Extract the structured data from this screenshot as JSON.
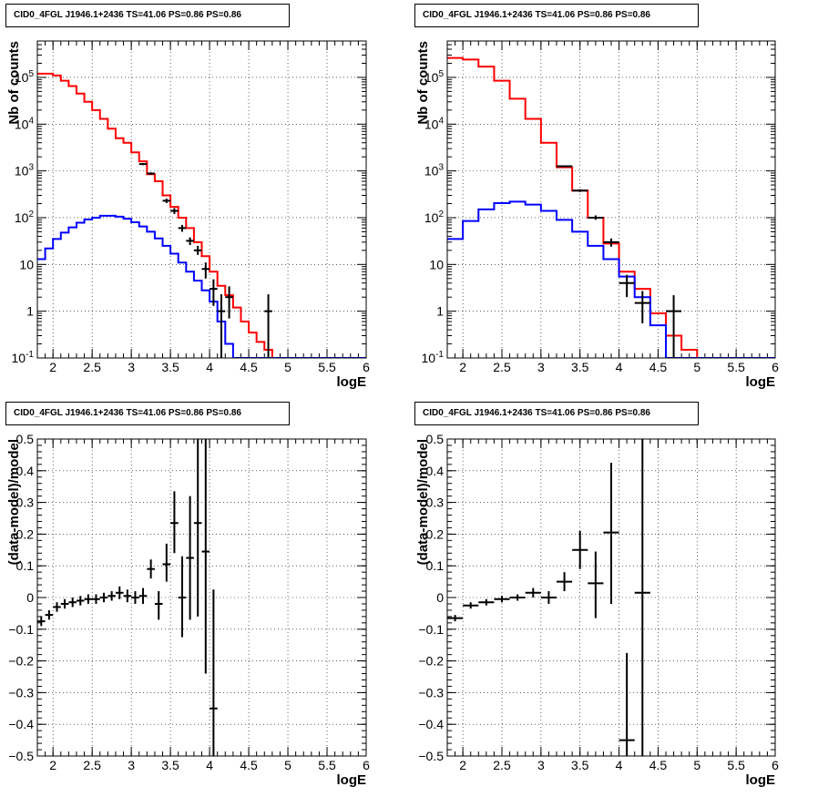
{
  "chart_data": [
    {
      "id": "p1",
      "type": "histogram",
      "title": "CID0_4FGL J1946.1+2436 TS=41.06 PS=0.86 PS=0.86",
      "xlabel": "logE",
      "ylabel": "Nb of counts",
      "xlim": [
        1.8,
        6.0
      ],
      "ylim": [
        0.1,
        600000
      ],
      "log_y": true,
      "grid": true,
      "x_ticks": [
        2,
        2.5,
        3,
        3.5,
        4,
        4.5,
        5,
        5.5,
        6
      ],
      "x_tick_labels": [
        "2",
        "2.5",
        "3",
        "3.5",
        "4",
        "4.5",
        "5",
        "5.5",
        "6"
      ],
      "y_ticks": [
        0.1,
        1,
        10,
        100,
        1000,
        10000,
        100000
      ],
      "y_tick_labels": [
        "10^-1",
        "1",
        "10",
        "10^2",
        "10^3",
        "10^4",
        "10^5"
      ],
      "series": [
        {
          "kind": "step",
          "color": "#ff0000",
          "bin_width": 0.1,
          "bin_starts": [
            1.8,
            1.9,
            2.0,
            2.1,
            2.2,
            2.3,
            2.4,
            2.5,
            2.6,
            2.7,
            2.8,
            2.9,
            3.0,
            3.1,
            3.2,
            3.3,
            3.4,
            3.5,
            3.6,
            3.7,
            3.8,
            3.9,
            4.0,
            4.1,
            4.2,
            4.3,
            4.4,
            4.5,
            4.6,
            4.7,
            4.8,
            4.9,
            5.0,
            5.1,
            5.2,
            5.3,
            5.4,
            5.5,
            5.6,
            5.7,
            5.8,
            5.9
          ],
          "values": [
            120000,
            120000,
            110000,
            85000,
            65000,
            45000,
            30000,
            20000,
            13000,
            8000,
            5000,
            4000,
            2500,
            1600,
            850,
            600,
            300,
            170,
            100,
            60,
            30,
            15,
            7,
            3.5,
            2.2,
            1.2,
            0.6,
            0.35,
            0.22,
            0.15,
            0.1,
            0.1,
            0.1,
            0.1,
            0.1,
            0.1,
            0.1,
            0.1,
            0.1,
            0.1,
            0.1,
            0.1
          ]
        },
        {
          "kind": "step",
          "color": "#0000ff",
          "bin_width": 0.1,
          "bin_starts": [
            1.8,
            1.9,
            2.0,
            2.1,
            2.2,
            2.3,
            2.4,
            2.5,
            2.6,
            2.7,
            2.8,
            2.9,
            3.0,
            3.1,
            3.2,
            3.3,
            3.4,
            3.5,
            3.6,
            3.7,
            3.8,
            3.9,
            4.0,
            4.1,
            4.2,
            4.3,
            4.4,
            4.5,
            4.6,
            4.7,
            4.8,
            4.9,
            5.0,
            5.1,
            5.2,
            5.3,
            5.4,
            5.5,
            5.6,
            5.7,
            5.8,
            5.9
          ],
          "values": [
            13,
            22,
            35,
            48,
            62,
            78,
            92,
            100,
            110,
            110,
            105,
            95,
            80,
            65,
            50,
            36,
            25,
            17,
            11,
            7,
            4.5,
            2.8,
            1.6,
            0.6,
            0.2,
            0.1,
            0.1,
            0.1,
            0.1,
            0.1,
            0.1,
            0.1,
            0.1,
            0.1,
            0.1,
            0.1,
            0.1,
            0.1,
            0.1,
            0.1,
            0.1,
            0.1
          ]
        },
        {
          "kind": "errorbars",
          "color": "#000000",
          "points": [
            {
              "x": 3.15,
              "y": 1400,
              "xerr": 0.05,
              "ylo": 1330,
              "yhi": 1470
            },
            {
              "x": 3.25,
              "y": 880,
              "xerr": 0.05,
              "ylo": 830,
              "yhi": 930
            },
            {
              "x": 3.45,
              "y": 230,
              "xerr": 0.05,
              "ylo": 205,
              "yhi": 255
            },
            {
              "x": 3.55,
              "y": 140,
              "xerr": 0.05,
              "ylo": 120,
              "yhi": 160
            },
            {
              "x": 3.65,
              "y": 60,
              "xerr": 0.05,
              "ylo": 50,
              "yhi": 70
            },
            {
              "x": 3.75,
              "y": 32,
              "xerr": 0.05,
              "ylo": 26,
              "yhi": 38
            },
            {
              "x": 3.85,
              "y": 20,
              "xerr": 0.05,
              "ylo": 16,
              "yhi": 25
            },
            {
              "x": 3.95,
              "y": 8,
              "xerr": 0.05,
              "ylo": 5,
              "yhi": 11
            },
            {
              "x": 4.05,
              "y": 3,
              "xerr": 0.05,
              "ylo": 1.3,
              "yhi": 4.8
            },
            {
              "x": 4.15,
              "y": 1,
              "xerr": 0.05,
              "ylo": 0.1,
              "yhi": 2.3
            },
            {
              "x": 4.25,
              "y": 2,
              "xerr": 0.05,
              "ylo": 0.7,
              "yhi": 3.4
            },
            {
              "x": 4.75,
              "y": 1,
              "xerr": 0.05,
              "ylo": 0.1,
              "yhi": 2.3
            }
          ]
        }
      ]
    },
    {
      "id": "p2",
      "type": "histogram",
      "title": "CID0_4FGL J1946.1+2436 TS=41.06 PS=0.86 PS=0.86",
      "xlabel": "logE",
      "ylabel": "Nb of counts",
      "xlim": [
        1.8,
        6.0
      ],
      "ylim": [
        0.1,
        600000
      ],
      "log_y": true,
      "grid": true,
      "x_ticks": [
        2,
        2.5,
        3,
        3.5,
        4,
        4.5,
        5,
        5.5,
        6
      ],
      "x_tick_labels": [
        "2",
        "2.5",
        "3",
        "3.5",
        "4",
        "4.5",
        "5",
        "5.5",
        "6"
      ],
      "y_ticks": [
        0.1,
        1,
        10,
        100,
        1000,
        10000,
        100000
      ],
      "y_tick_labels": [
        "10^-1",
        "1",
        "10",
        "10^2",
        "10^3",
        "10^4",
        "10^5"
      ],
      "series": [
        {
          "kind": "step",
          "color": "#ff0000",
          "bin_width": 0.2,
          "bin_starts": [
            1.8,
            2.0,
            2.2,
            2.4,
            2.6,
            2.8,
            3.0,
            3.2,
            3.4,
            3.6,
            3.8,
            4.0,
            4.2,
            4.4,
            4.6,
            4.8,
            5.0,
            5.2,
            5.4,
            5.6,
            5.8
          ],
          "values": [
            260000,
            240000,
            170000,
            85000,
            35000,
            13000,
            4000,
            1200,
            380,
            100,
            28,
            7,
            3,
            0.9,
            0.3,
            0.15,
            0.1,
            0.1,
            0.1,
            0.1,
            0.1
          ]
        },
        {
          "kind": "step",
          "color": "#0000ff",
          "bin_width": 0.2,
          "bin_starts": [
            1.8,
            2.0,
            2.2,
            2.4,
            2.6,
            2.8,
            3.0,
            3.2,
            3.4,
            3.6,
            3.8,
            4.0,
            4.2,
            4.4,
            4.6,
            4.8,
            5.0,
            5.2,
            5.4,
            5.6,
            5.8
          ],
          "values": [
            35,
            85,
            150,
            205,
            220,
            190,
            140,
            90,
            50,
            25,
            13,
            5.5,
            2,
            0.5,
            0.1,
            0.1,
            0.1,
            0.1,
            0.1,
            0.1,
            0.1
          ]
        },
        {
          "kind": "errorbars",
          "color": "#000000",
          "points": [
            {
              "x": 3.3,
              "y": 1260,
              "xerr": 0.1,
              "ylo": 1210,
              "yhi": 1310
            },
            {
              "x": 3.5,
              "y": 380,
              "xerr": 0.1,
              "ylo": 355,
              "yhi": 405
            },
            {
              "x": 3.7,
              "y": 100,
              "xerr": 0.1,
              "ylo": 90,
              "yhi": 112
            },
            {
              "x": 3.9,
              "y": 30,
              "xerr": 0.1,
              "ylo": 24,
              "yhi": 36
            },
            {
              "x": 4.1,
              "y": 4,
              "xerr": 0.1,
              "ylo": 2,
              "yhi": 6
            },
            {
              "x": 4.3,
              "y": 1.5,
              "xerr": 0.1,
              "ylo": 0.55,
              "yhi": 2.7
            },
            {
              "x": 4.7,
              "y": 1,
              "xerr": 0.1,
              "ylo": 0.1,
              "yhi": 2.2
            }
          ]
        }
      ]
    },
    {
      "id": "p3",
      "type": "scatter",
      "title": "CID0_4FGL J1946.1+2436 TS=41.06 PS=0.86 PS=0.86",
      "xlabel": "logE",
      "ylabel": "(data-model)/model",
      "xlim": [
        1.8,
        6.0
      ],
      "ylim": [
        -0.5,
        0.5
      ],
      "log_y": false,
      "grid": true,
      "x_ticks": [
        2,
        2.5,
        3,
        3.5,
        4,
        4.5,
        5,
        5.5,
        6
      ],
      "x_tick_labels": [
        "2",
        "2.5",
        "3",
        "3.5",
        "4",
        "4.5",
        "5",
        "5.5",
        "6"
      ],
      "y_ticks": [
        -0.5,
        -0.4,
        -0.3,
        -0.2,
        -0.1,
        0,
        0.1,
        0.2,
        0.3,
        0.4,
        0.5
      ],
      "y_tick_labels": [
        "−0.5",
        "−0.4",
        "−0.3",
        "−0.2",
        "−0.1",
        "0",
        "0.1",
        "0.2",
        "0.3",
        "0.4",
        "0.5"
      ],
      "series": [
        {
          "kind": "errorbars",
          "color": "#000000",
          "points": [
            {
              "x": 1.85,
              "y": -0.075,
              "xerr": 0.05,
              "ylo": -0.09,
              "yhi": -0.06
            },
            {
              "x": 1.95,
              "y": -0.055,
              "xerr": 0.05,
              "ylo": -0.07,
              "yhi": -0.04
            },
            {
              "x": 2.05,
              "y": -0.03,
              "xerr": 0.05,
              "ylo": -0.045,
              "yhi": -0.015
            },
            {
              "x": 2.15,
              "y": -0.02,
              "xerr": 0.05,
              "ylo": -0.035,
              "yhi": -0.005
            },
            {
              "x": 2.25,
              "y": -0.015,
              "xerr": 0.05,
              "ylo": -0.03,
              "yhi": 0.0
            },
            {
              "x": 2.35,
              "y": -0.01,
              "xerr": 0.05,
              "ylo": -0.025,
              "yhi": 0.005
            },
            {
              "x": 2.45,
              "y": -0.005,
              "xerr": 0.05,
              "ylo": -0.02,
              "yhi": 0.01
            },
            {
              "x": 2.55,
              "y": -0.005,
              "xerr": 0.05,
              "ylo": -0.02,
              "yhi": 0.01
            },
            {
              "x": 2.65,
              "y": 0.0,
              "xerr": 0.05,
              "ylo": -0.015,
              "yhi": 0.015
            },
            {
              "x": 2.75,
              "y": 0.005,
              "xerr": 0.05,
              "ylo": -0.01,
              "yhi": 0.02
            },
            {
              "x": 2.85,
              "y": 0.015,
              "xerr": 0.05,
              "ylo": -0.005,
              "yhi": 0.035
            },
            {
              "x": 2.95,
              "y": 0.005,
              "xerr": 0.05,
              "ylo": -0.015,
              "yhi": 0.025
            },
            {
              "x": 3.05,
              "y": 0.0,
              "xerr": 0.05,
              "ylo": -0.02,
              "yhi": 0.02
            },
            {
              "x": 3.15,
              "y": 0.005,
              "xerr": 0.05,
              "ylo": -0.02,
              "yhi": 0.03
            },
            {
              "x": 3.25,
              "y": 0.09,
              "xerr": 0.05,
              "ylo": 0.06,
              "yhi": 0.12
            },
            {
              "x": 3.35,
              "y": -0.02,
              "xerr": 0.05,
              "ylo": -0.07,
              "yhi": 0.02
            },
            {
              "x": 3.45,
              "y": 0.105,
              "xerr": 0.05,
              "ylo": 0.05,
              "yhi": 0.17
            },
            {
              "x": 3.55,
              "y": 0.235,
              "xerr": 0.05,
              "ylo": 0.14,
              "yhi": 0.335
            },
            {
              "x": 3.65,
              "y": 0.0,
              "xerr": 0.05,
              "ylo": -0.125,
              "yhi": 0.13
            },
            {
              "x": 3.75,
              "y": 0.125,
              "xerr": 0.05,
              "ylo": -0.07,
              "yhi": 0.32
            },
            {
              "x": 3.85,
              "y": 0.235,
              "xerr": 0.05,
              "ylo": -0.06,
              "yhi": 0.5
            },
            {
              "x": 3.95,
              "y": 0.145,
              "xerr": 0.05,
              "ylo": -0.24,
              "yhi": 0.5
            },
            {
              "x": 4.05,
              "y": -0.35,
              "xerr": 0.05,
              "ylo": -0.5,
              "yhi": 0.025
            }
          ]
        }
      ]
    },
    {
      "id": "p4",
      "type": "scatter",
      "title": "CID0_4FGL J1946.1+2436 TS=41.06 PS=0.86 PS=0.86",
      "xlabel": "logE",
      "ylabel": "(data-model)/model",
      "xlim": [
        1.8,
        6.0
      ],
      "ylim": [
        -0.5,
        0.5
      ],
      "log_y": false,
      "grid": true,
      "x_ticks": [
        2,
        2.5,
        3,
        3.5,
        4,
        4.5,
        5,
        5.5,
        6
      ],
      "x_tick_labels": [
        "2",
        "2.5",
        "3",
        "3.5",
        "4",
        "4.5",
        "5",
        "5.5",
        "6"
      ],
      "y_ticks": [
        -0.5,
        -0.4,
        -0.3,
        -0.2,
        -0.1,
        0,
        0.1,
        0.2,
        0.3,
        0.4,
        0.5
      ],
      "y_tick_labels": [
        "−0.5",
        "−0.4",
        "−0.3",
        "−0.2",
        "−0.1",
        "0",
        "0.1",
        "0.2",
        "0.3",
        "0.4",
        "0.5"
      ],
      "series": [
        {
          "kind": "errorbars",
          "color": "#000000",
          "points": [
            {
              "x": 1.9,
              "y": -0.065,
              "xerr": 0.1,
              "ylo": -0.075,
              "yhi": -0.055
            },
            {
              "x": 2.1,
              "y": -0.025,
              "xerr": 0.1,
              "ylo": -0.035,
              "yhi": -0.015
            },
            {
              "x": 2.3,
              "y": -0.015,
              "xerr": 0.1,
              "ylo": -0.025,
              "yhi": -0.005
            },
            {
              "x": 2.5,
              "y": -0.005,
              "xerr": 0.1,
              "ylo": -0.015,
              "yhi": 0.005
            },
            {
              "x": 2.7,
              "y": 0.0,
              "xerr": 0.1,
              "ylo": -0.01,
              "yhi": 0.01
            },
            {
              "x": 2.9,
              "y": 0.015,
              "xerr": 0.1,
              "ylo": 0.0,
              "yhi": 0.03
            },
            {
              "x": 3.1,
              "y": 0.0,
              "xerr": 0.1,
              "ylo": -0.02,
              "yhi": 0.02
            },
            {
              "x": 3.3,
              "y": 0.05,
              "xerr": 0.1,
              "ylo": 0.02,
              "yhi": 0.08
            },
            {
              "x": 3.5,
              "y": 0.15,
              "xerr": 0.1,
              "ylo": 0.09,
              "yhi": 0.21
            },
            {
              "x": 3.7,
              "y": 0.045,
              "xerr": 0.1,
              "ylo": -0.065,
              "yhi": 0.145
            },
            {
              "x": 3.9,
              "y": 0.205,
              "xerr": 0.1,
              "ylo": -0.02,
              "yhi": 0.425
            },
            {
              "x": 4.1,
              "y": -0.45,
              "xerr": 0.1,
              "ylo": -0.5,
              "yhi": -0.175
            },
            {
              "x": 4.3,
              "y": 0.015,
              "xerr": 0.1,
              "ylo": -0.5,
              "yhi": 0.5
            }
          ]
        }
      ]
    }
  ]
}
